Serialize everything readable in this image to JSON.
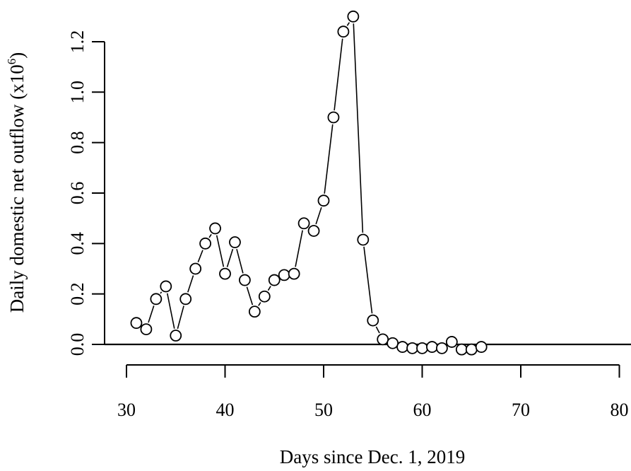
{
  "chart_data": {
    "type": "scatter",
    "style": "connected points (type b)",
    "title": "",
    "xlabel": "Days since Dec. 1, 2019",
    "ylabel": "Daily domestic net outflow (x10",
    "ylabel_superscript": "6",
    "ylabel_close": ")",
    "xlim": [
      30,
      80
    ],
    "ylim": [
      0,
      1.3
    ],
    "x_ticks": [
      30,
      40,
      50,
      60,
      70,
      80
    ],
    "x_tick_labels": [
      "30",
      "40",
      "50",
      "60",
      "70",
      "80"
    ],
    "y_ticks": [
      0,
      0.2,
      0.4,
      0.6,
      0.8,
      1.0,
      1.2
    ],
    "y_tick_labels": [
      "0.0",
      "0.2",
      "0.4",
      "0.6",
      "0.8",
      "1.0",
      "1.2"
    ],
    "reference_line": {
      "y": 0
    },
    "grid": false,
    "legend": "none",
    "series": [
      {
        "x": [
          31,
          32,
          33,
          34,
          35,
          36,
          37,
          38,
          39,
          40,
          41,
          42,
          43,
          44,
          45,
          46,
          47,
          48,
          49,
          50,
          51,
          52,
          53,
          54,
          55,
          56,
          57,
          58,
          59,
          60,
          61,
          62,
          63,
          64,
          65,
          66
        ],
        "y": [
          0.085,
          0.06,
          0.18,
          0.23,
          0.035,
          0.18,
          0.3,
          0.4,
          0.46,
          0.28,
          0.405,
          0.255,
          0.13,
          0.19,
          0.255,
          0.275,
          0.28,
          0.48,
          0.45,
          0.57,
          0.9,
          1.24,
          1.3,
          0.415,
          0.095,
          0.02,
          0.005,
          -0.01,
          -0.015,
          -0.015,
          -0.01,
          -0.015,
          0.01,
          -0.02,
          -0.02,
          -0.01
        ]
      }
    ]
  }
}
